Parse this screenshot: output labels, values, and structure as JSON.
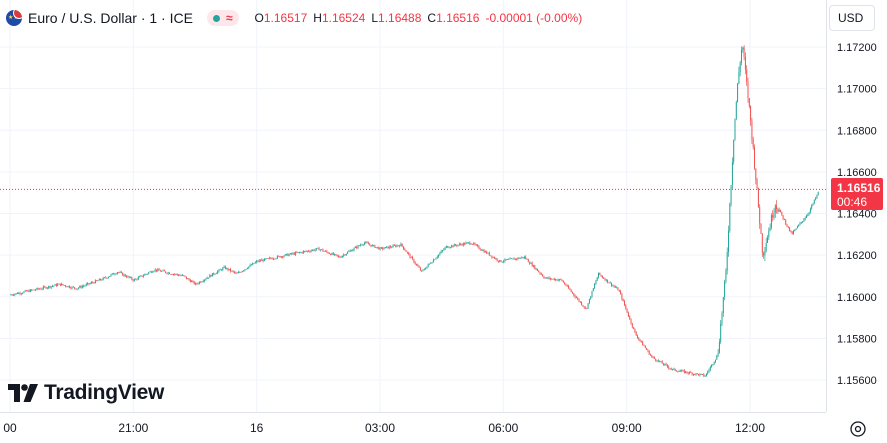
{
  "legend": {
    "symbol_title": "Euro / U.S. Dollar · 1 · ICE",
    "flag_icon": "eur-usd-flag-icon",
    "open_label": "O",
    "open": "1.16517",
    "high_label": "H",
    "high": "1.16524",
    "low_label": "L",
    "low": "1.16488",
    "close_label": "C",
    "close": "1.16516",
    "change": "-0.00001 (-0.00%)"
  },
  "toolbar": {
    "currency": "USD",
    "settings_icon": "gear-icon"
  },
  "branding": {
    "logo": "TradingView"
  },
  "colors": {
    "up": "#26a69a",
    "down": "#ef5350",
    "price_tag": "#f23645"
  },
  "last_price": {
    "value": "1.16516",
    "countdown": "00:46"
  },
  "chart_data": {
    "type": "candlestick",
    "symbol": "Euro / U.S. Dollar",
    "interval": "1",
    "exchange": "ICE",
    "currency": "USD",
    "x_tick_labels": [
      "00",
      "21:00",
      "16",
      "03:00",
      "06:00",
      "09:00",
      "12:00"
    ],
    "y_tick_labels": [
      "1.17200",
      "1.17000",
      "1.16800",
      "1.16600",
      "1.16400",
      "1.16200",
      "1.16000",
      "1.15800",
      "1.15600"
    ],
    "ylim": [
      1.1546,
      1.173
    ],
    "grid": true,
    "price_path": {
      "description_units": "x in hours after 18:00 of the previous day (18:00=0, 21:00=3, 00:00=6, 03:00=9, 06:00=12, 09:00=15, 12:00=18)",
      "x": [
        0,
        0.5,
        1.2,
        1.6,
        2.3,
        2.6,
        3.0,
        3.5,
        4.2,
        4.5,
        5.2,
        5.5,
        6.0,
        6.7,
        7.5,
        8.0,
        8.6,
        9.0,
        9.5,
        10.0,
        10.6,
        11.2,
        11.9,
        12.5,
        13.0,
        13.4,
        14.0,
        14.3,
        14.8,
        15.2,
        15.6,
        16.1,
        16.9,
        17.2,
        17.4,
        17.6,
        17.7,
        17.8,
        18.0,
        18.3,
        18.6,
        19.0,
        19.4,
        19.7
      ],
      "y": [
        1.1601,
        1.1603,
        1.1606,
        1.1604,
        1.1609,
        1.1612,
        1.1608,
        1.1613,
        1.161,
        1.1606,
        1.1614,
        1.1611,
        1.1617,
        1.162,
        1.1623,
        1.1619,
        1.1626,
        1.1623,
        1.1625,
        1.1612,
        1.1624,
        1.1626,
        1.1617,
        1.1619,
        1.1609,
        1.1608,
        1.1594,
        1.1611,
        1.1603,
        1.1582,
        1.1571,
        1.1565,
        1.1562,
        1.1572,
        1.1611,
        1.168,
        1.1705,
        1.1722,
        1.1685,
        1.162,
        1.1645,
        1.163,
        1.164,
        1.1652
      ]
    },
    "last_price": 1.16516
  }
}
